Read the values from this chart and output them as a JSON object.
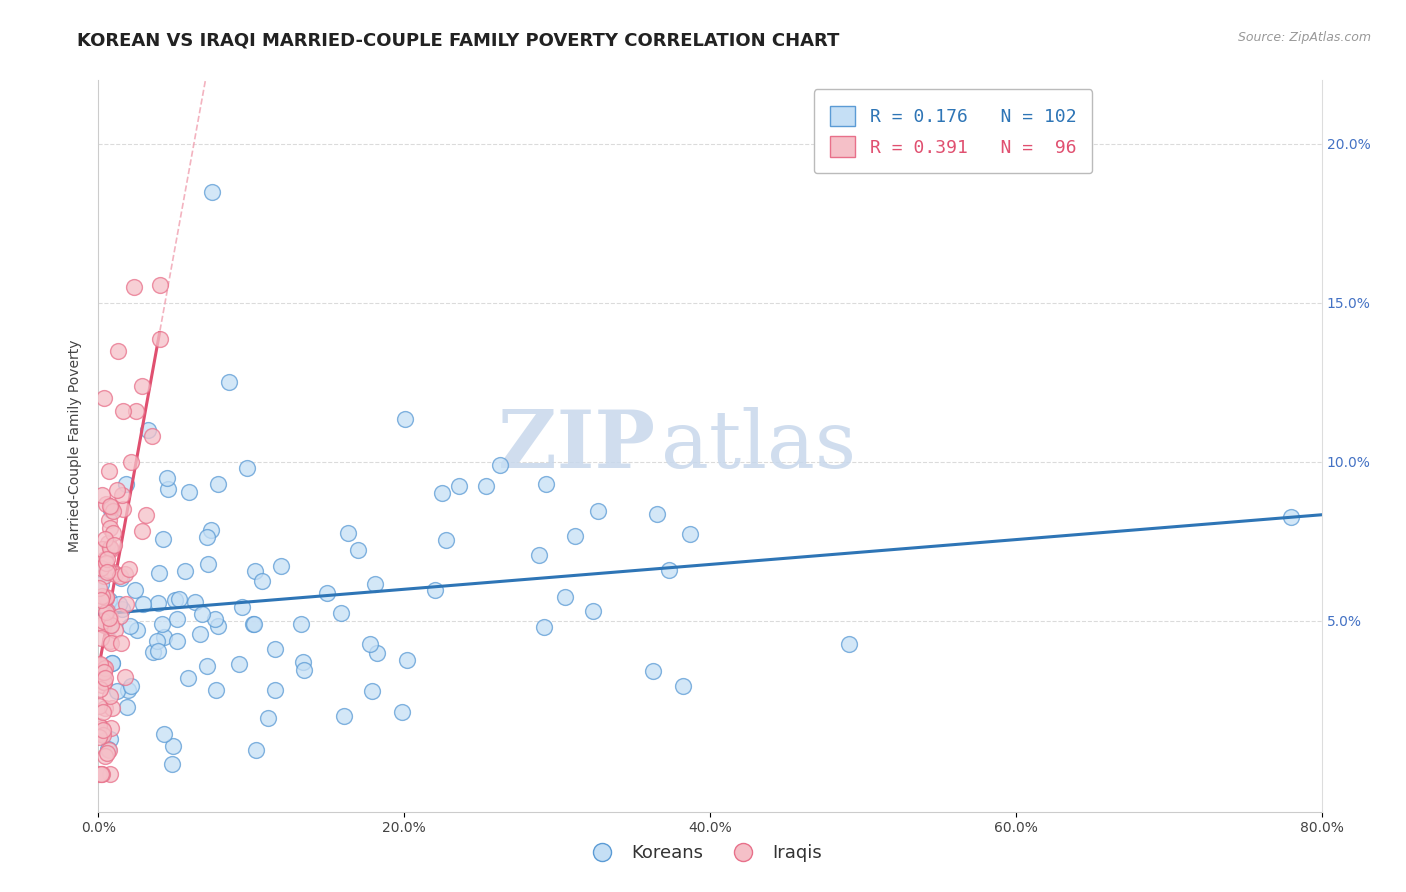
{
  "title": "KOREAN VS IRAQI MARRIED-COUPLE FAMILY POVERTY CORRELATION CHART",
  "source": "Source: ZipAtlas.com",
  "ylabel": "Married-Couple Family Poverty",
  "xlim": [
    0.0,
    0.8
  ],
  "ylim": [
    -0.01,
    0.22
  ],
  "xtick_labels": [
    "0.0%",
    "20.0%",
    "40.0%",
    "60.0%",
    "80.0%"
  ],
  "xtick_vals": [
    0.0,
    0.2,
    0.4,
    0.6,
    0.8
  ],
  "ytick_labels": [
    "5.0%",
    "10.0%",
    "15.0%",
    "20.0%"
  ],
  "ytick_vals": [
    0.05,
    0.1,
    0.15,
    0.2
  ],
  "korean_fill": "#C5DFF5",
  "korean_edge": "#5B9BD5",
  "iraqi_fill": "#F5C0C8",
  "iraqi_edge": "#E8708A",
  "korean_line_color": "#2E75B6",
  "iraqi_line_color": "#E05070",
  "iraqi_dash_color": "#F0A0B0",
  "R_korean": 0.176,
  "N_korean": 102,
  "R_iraqi": 0.391,
  "N_iraqi": 96,
  "watermark_zip": "ZIP",
  "watermark_atlas": "atlas",
  "legend_koreans": "Koreans",
  "legend_iraqis": "Iraqis",
  "background_color": "#FFFFFF",
  "grid_color": "#CCCCCC",
  "title_fontsize": 13,
  "axis_label_fontsize": 10,
  "tick_fontsize": 10,
  "right_tick_color": "#4472C4"
}
